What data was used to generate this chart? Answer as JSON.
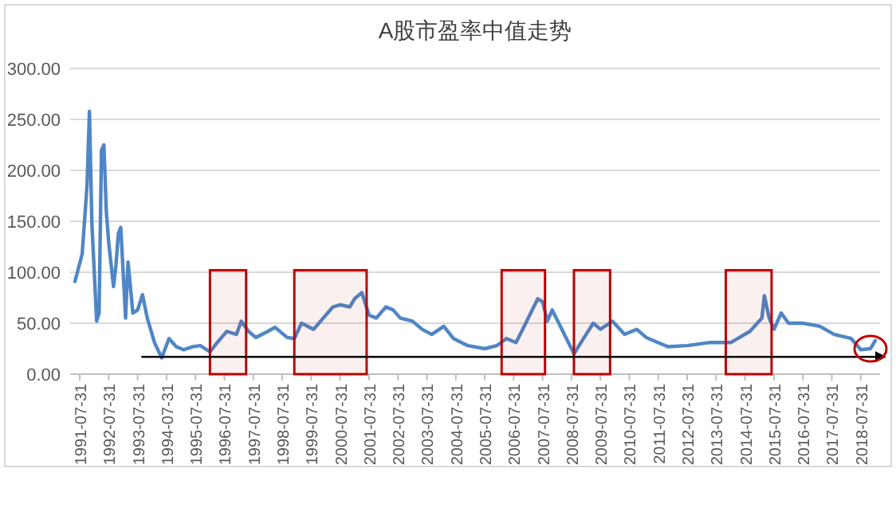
{
  "chart_data": {
    "type": "line",
    "title": "A股市盈率中值走势",
    "x": [
      "1991-06",
      "1991-09",
      "1991-11",
      "1991-12",
      "1992-01",
      "1992-03",
      "1992-04",
      "1992-05",
      "1992-06",
      "1992-07",
      "1992-08",
      "1992-10",
      "1992-11",
      "1992-12",
      "1993-01",
      "1993-03",
      "1993-04",
      "1993-05",
      "1993-06",
      "1993-08",
      "1993-10",
      "1993-12",
      "1994-03",
      "1994-06",
      "1994-09",
      "1994-12",
      "1995-03",
      "1995-07",
      "1995-10",
      "1996-02",
      "1996-05",
      "1996-09",
      "1997-01",
      "1997-03",
      "1997-06",
      "1997-09",
      "1998-02",
      "1998-05",
      "1998-10",
      "1999-01",
      "1999-04",
      "1999-09",
      "2000-05",
      "2000-08",
      "2000-12",
      "2001-02",
      "2001-05",
      "2001-08",
      "2001-11",
      "2002-03",
      "2002-06",
      "2002-09",
      "2003-02",
      "2003-06",
      "2003-10",
      "2004-03",
      "2004-07",
      "2005-01",
      "2005-08",
      "2006-01",
      "2006-05",
      "2006-09",
      "2007-01",
      "2007-06",
      "2007-08",
      "2007-10",
      "2007-12",
      "2008-04",
      "2008-09",
      "2009-01",
      "2009-05",
      "2009-08",
      "2010-01",
      "2010-06",
      "2010-11",
      "2011-03",
      "2011-12",
      "2012-08",
      "2013-05",
      "2014-02",
      "2014-10",
      "2015-03",
      "2015-04",
      "2015-06",
      "2015-08",
      "2015-11",
      "2016-02",
      "2016-08",
      "2017-03",
      "2017-09",
      "2018-04",
      "2018-08",
      "2018-12",
      "2019-02"
    ],
    "series": [
      {
        "color": "#4f86c6",
        "values": [
          91,
          118,
          185,
          258,
          149,
          52,
          60,
          220,
          225,
          160,
          129,
          86,
          107,
          138,
          144,
          55,
          110,
          86,
          60,
          63,
          78,
          55,
          31,
          16,
          35,
          27,
          24,
          27,
          28,
          22,
          31,
          42,
          39,
          52,
          42,
          36,
          42,
          46,
          36,
          35,
          50,
          44,
          66,
          68,
          66,
          74,
          80,
          58,
          55,
          66,
          63,
          55,
          52,
          44,
          39,
          47,
          35,
          28,
          25,
          28,
          35,
          31,
          50,
          74,
          71,
          52,
          63,
          44,
          20,
          35,
          50,
          44,
          52,
          39,
          44,
          36,
          27,
          28,
          31,
          31,
          42,
          55,
          77,
          55,
          44,
          60,
          50,
          50,
          47,
          39,
          35,
          24,
          25,
          33
        ]
      }
    ],
    "xlim": [
      "1991-04",
      "2019-04"
    ],
    "xticks": [
      {
        "value": "1991-07-31",
        "label": "1991-07-31"
      },
      {
        "value": "1992-07-31",
        "label": "1992-07-31"
      },
      {
        "value": "1993-07-31",
        "label": "1993-07-31"
      },
      {
        "value": "1994-07-31",
        "label": "1994-07-31"
      },
      {
        "value": "1995-07-31",
        "label": "1995-07-31"
      },
      {
        "value": "1996-07-31",
        "label": "1996-07-31"
      },
      {
        "value": "1997-07-31",
        "label": "1997-07-31"
      },
      {
        "value": "1998-07-31",
        "label": "1998-07-31"
      },
      {
        "value": "1999-07-31",
        "label": "1999-07-31"
      },
      {
        "value": "2000-07-31",
        "label": "2000-07-31"
      },
      {
        "value": "2001-07-31",
        "label": "2001-07-31"
      },
      {
        "value": "2002-07-31",
        "label": "2002-07-31"
      },
      {
        "value": "2003-07-31",
        "label": "2003-07-31"
      },
      {
        "value": "2004-07-31",
        "label": "2004-07-31"
      },
      {
        "value": "2005-07-31",
        "label": "2005-07-31"
      },
      {
        "value": "2006-07-31",
        "label": "2006-07-31"
      },
      {
        "value": "2007-07-31",
        "label": "2007-07-31"
      },
      {
        "value": "2008-07-31",
        "label": "2008-07-31"
      },
      {
        "value": "2009-07-31",
        "label": "2009-07-31"
      },
      {
        "value": "2010-07-31",
        "label": "2010-07-31"
      },
      {
        "value": "2011-07-31",
        "label": "2011-07-31"
      },
      {
        "value": "2012-07-31",
        "label": "2012-07-31"
      },
      {
        "value": "2013-07-31",
        "label": "2013-07-31"
      },
      {
        "value": "2014-07-31",
        "label": "2014-07-31"
      },
      {
        "value": "2015-07-31",
        "label": "2015-07-31"
      },
      {
        "value": "2016-07-31",
        "label": "2016-07-31"
      },
      {
        "value": "2017-07-31",
        "label": "2017-07-31"
      },
      {
        "value": "2018-07-31",
        "label": "2018-07-31"
      }
    ],
    "ylim": [
      0,
      300
    ],
    "yticks": [
      {
        "value": 0,
        "label": "0.00"
      },
      {
        "value": 50,
        "label": "50.00"
      },
      {
        "value": 100,
        "label": "100.00"
      },
      {
        "value": 150,
        "label": "150.00"
      },
      {
        "value": 200,
        "label": "200.00"
      },
      {
        "value": 250,
        "label": "250.00"
      },
      {
        "value": 300,
        "label": "300.00"
      }
    ],
    "grid": "y",
    "ref_lines": [
      {
        "axis": "y",
        "value": 17,
        "color": "#000000"
      }
    ],
    "bands": [
      {
        "axis": "x",
        "from": "1996-02",
        "to": "1997-05",
        "color": "#c00000"
      },
      {
        "axis": "x",
        "from": "1999-01",
        "to": "2001-07",
        "color": "#c00000"
      },
      {
        "axis": "x",
        "from": "2006-03",
        "to": "2007-09",
        "color": "#c00000"
      },
      {
        "axis": "x",
        "from": "2008-09",
        "to": "2009-12",
        "color": "#c00000"
      },
      {
        "axis": "x",
        "from": "2013-12",
        "to": "2015-07",
        "color": "#c00000"
      }
    ]
  }
}
